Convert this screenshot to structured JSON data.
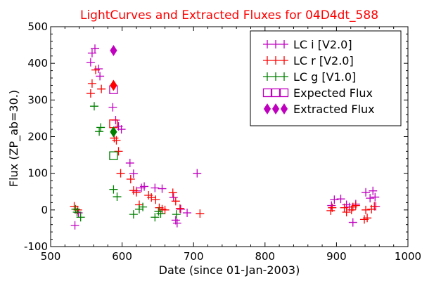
{
  "chart_data": {
    "type": "scatter",
    "title": "LightCurves and Extracted Fluxes for 04D4dt_588",
    "xlabel": "Date (since 01-Jan-2003)",
    "ylabel": "Flux (ZP_ab=30.)",
    "xlim": [
      500,
      1000
    ],
    "ylim": [
      -100,
      500
    ],
    "x_ticks": [
      500,
      600,
      700,
      800,
      900,
      1000
    ],
    "y_ticks": [
      -100,
      0,
      100,
      200,
      300,
      400,
      500
    ],
    "x_tick_labels": [
      "500",
      "600",
      "700",
      "800",
      "900",
      "1000"
    ],
    "y_tick_labels": [
      "-100",
      "0",
      "100",
      "200",
      "300",
      "400",
      "500"
    ],
    "grid": false,
    "legend_position": "top-right",
    "series": [
      {
        "name": "LC i [V2.0]",
        "marker": "plus",
        "color": "#bf00bf",
        "points": [
          [
            534,
            -42
          ],
          [
            539,
            -8
          ],
          [
            556,
            403
          ],
          [
            558,
            428
          ],
          [
            562,
            440
          ],
          [
            567,
            385
          ],
          [
            569,
            365
          ],
          [
            587,
            280
          ],
          [
            591,
            245
          ],
          [
            595,
            228
          ],
          [
            599,
            220
          ],
          [
            611,
            128
          ],
          [
            616,
            99
          ],
          [
            620,
            52
          ],
          [
            627,
            60
          ],
          [
            631,
            64
          ],
          [
            646,
            60
          ],
          [
            656,
            58
          ],
          [
            672,
            34
          ],
          [
            675,
            -28
          ],
          [
            677,
            -36
          ],
          [
            682,
            2
          ],
          [
            691,
            -8
          ],
          [
            705,
            100
          ],
          [
            893,
            12
          ],
          [
            897,
            28
          ],
          [
            906,
            30
          ],
          [
            914,
            14
          ],
          [
            918,
            8
          ],
          [
            923,
            -34
          ],
          [
            927,
            16
          ],
          [
            941,
            48
          ],
          [
            947,
            32
          ],
          [
            951,
            52
          ],
          [
            954,
            35
          ],
          [
            955,
            10
          ]
        ]
      },
      {
        "name": "LC r [V2.0]",
        "marker": "plus",
        "color": "#ff0000",
        "points": [
          [
            533,
            10
          ],
          [
            538,
            0
          ],
          [
            556,
            318
          ],
          [
            558,
            345
          ],
          [
            563,
            382
          ],
          [
            571,
            330
          ],
          [
            589,
            196
          ],
          [
            592,
            190
          ],
          [
            595,
            160
          ],
          [
            598,
            100
          ],
          [
            612,
            84
          ],
          [
            616,
            53
          ],
          [
            620,
            48
          ],
          [
            624,
            14
          ],
          [
            637,
            40
          ],
          [
            641,
            34
          ],
          [
            647,
            28
          ],
          [
            652,
            6
          ],
          [
            656,
            2
          ],
          [
            660,
            0
          ],
          [
            671,
            47
          ],
          [
            675,
            24
          ],
          [
            681,
            4
          ],
          [
            709,
            -10
          ],
          [
            892,
            -2
          ],
          [
            894,
            6
          ],
          [
            911,
            6
          ],
          [
            914,
            -6
          ],
          [
            921,
            0
          ],
          [
            923,
            8
          ],
          [
            927,
            12
          ],
          [
            939,
            -26
          ],
          [
            941,
            0
          ],
          [
            943,
            -22
          ],
          [
            949,
            2
          ],
          [
            953,
            10
          ]
        ]
      },
      {
        "name": "LC g [V1.0]",
        "marker": "plus",
        "color": "#008000",
        "points": [
          [
            535,
            2
          ],
          [
            537,
            -6
          ],
          [
            542,
            -20
          ],
          [
            561,
            283
          ],
          [
            568,
            214
          ],
          [
            570,
            225
          ],
          [
            588,
            56
          ],
          [
            593,
            36
          ],
          [
            616,
            -12
          ],
          [
            624,
            2
          ],
          [
            629,
            8
          ],
          [
            646,
            -20
          ],
          [
            651,
            -4
          ],
          [
            654,
            -10
          ],
          [
            676,
            -12
          ]
        ]
      }
    ],
    "expected_flux": {
      "name": "Expected Flux",
      "marker": "square",
      "points": [
        {
          "x": 588,
          "y": 328,
          "color": "#bf00bf"
        },
        {
          "x": 588,
          "y": 235,
          "color": "#ff0000"
        },
        {
          "x": 588,
          "y": 148,
          "color": "#008000"
        }
      ]
    },
    "extracted_flux": {
      "name": "Extracted Flux",
      "marker": "diamond",
      "points": [
        {
          "x": 588,
          "y": 435,
          "color": "#bf00bf"
        },
        {
          "x": 588,
          "y": 340,
          "color": "#ff0000"
        },
        {
          "x": 588,
          "y": 213,
          "color": "#008000"
        }
      ]
    },
    "legend": [
      {
        "label": "LC i [V2.0]",
        "marker": "plus",
        "colors": [
          "#bf00bf",
          "#bf00bf",
          "#bf00bf"
        ]
      },
      {
        "label": "LC r [V2.0]",
        "marker": "plus",
        "colors": [
          "#ff0000",
          "#ff0000",
          "#ff0000"
        ]
      },
      {
        "label": "LC g [V1.0]",
        "marker": "plus",
        "colors": [
          "#008000",
          "#008000",
          "#008000"
        ]
      },
      {
        "label": "Expected Flux",
        "marker": "square",
        "colors": [
          "#bf00bf",
          "#bf00bf",
          "#bf00bf"
        ]
      },
      {
        "label": "Extracted Flux",
        "marker": "diamond",
        "colors": [
          "#bf00bf",
          "#bf00bf",
          "#bf00bf"
        ]
      }
    ]
  }
}
